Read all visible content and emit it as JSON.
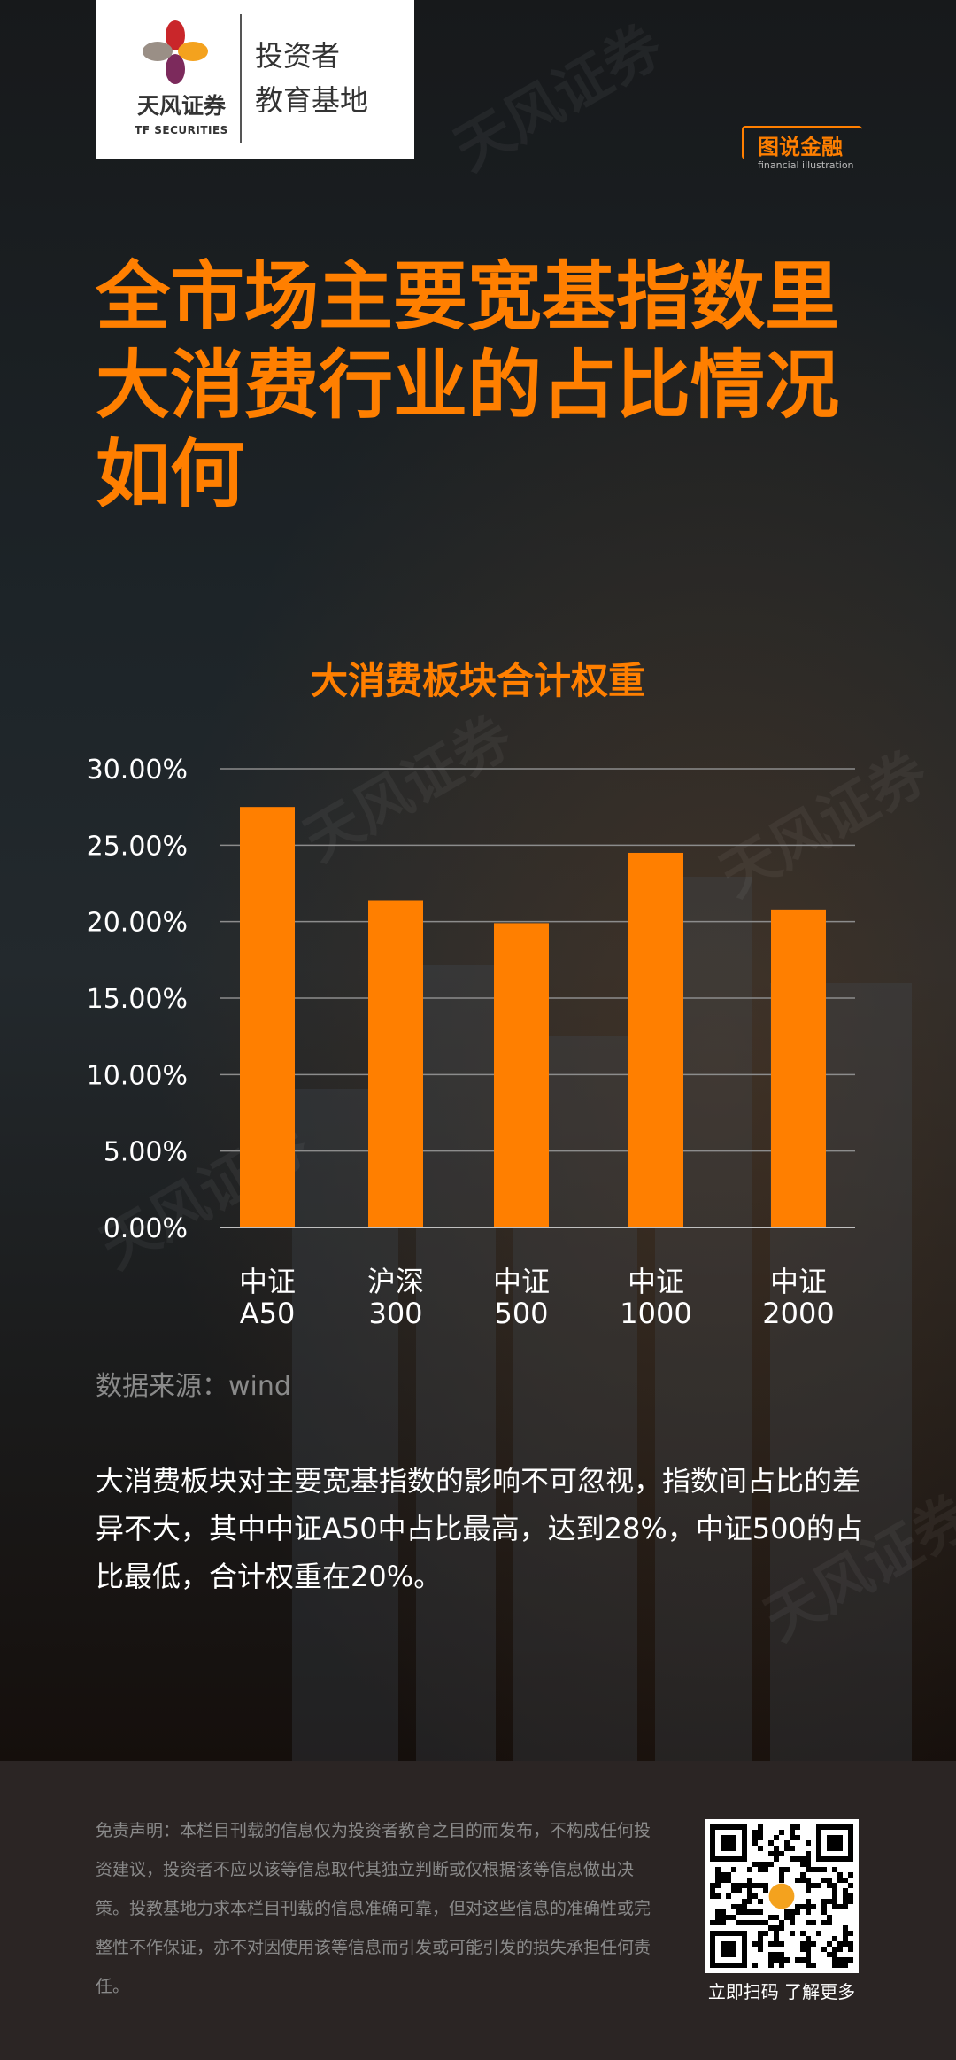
{
  "logo": {
    "name_cn": "天风证券",
    "name_en": "TF SECURITIES",
    "line1": "投资者",
    "line2": "教育基地",
    "colors": [
      "#c9262a",
      "#f4a21e",
      "#7c2a5c",
      "#9a8f86"
    ]
  },
  "tag": {
    "cn": "图说金融",
    "en": "financial illustration"
  },
  "headline": "全市场主要宽基指数里大消费行业的占比情况如何",
  "chart_data": {
    "type": "bar",
    "title": "大消费板块合计权重",
    "categories": [
      [
        "中证",
        "A50"
      ],
      [
        "沪深",
        "300"
      ],
      [
        "中证",
        "500"
      ],
      [
        "中证",
        "1000"
      ],
      [
        "中证",
        "2000"
      ]
    ],
    "values": [
      0.275,
      0.214,
      0.199,
      0.245,
      0.208
    ],
    "ylim": [
      0,
      0.3
    ],
    "yticks": [
      "0.00%",
      "5.00%",
      "10.00%",
      "15.00%",
      "20.00%",
      "25.00%",
      "30.00%"
    ],
    "grid": true,
    "bar_color": "#ff7f00"
  },
  "source": "数据来源：wind",
  "summary": "大消费板块对主要宽基指数的影响不可忽视，指数间占比的差异不大，其中中证A50中占比最高，达到28%，中证500的占比最低，合计权重在20%。",
  "footer": {
    "disclaimer": "免责声明：本栏目刊载的信息仅为投资者教育之目的而发布，不构成任何投资建议，投资者不应以该等信息取代其独立判断或仅根据该等信息做出决策。投教基地力求本栏目刊载的信息准确可靠，但对这些信息的准确性或完整性不作保证，亦不对因使用该等信息而引发或可能引发的损失承担任何责任。",
    "qr_caption": "立即扫码 了解更多"
  }
}
